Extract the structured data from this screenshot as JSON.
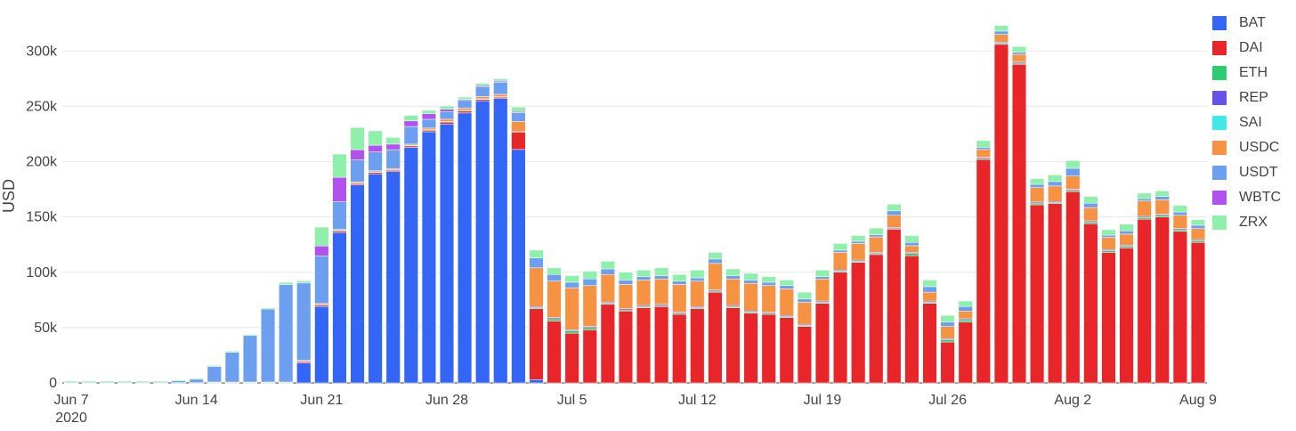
{
  "chart_data": {
    "type": "bar",
    "stacked": true,
    "ylabel": "USD",
    "xlabel": "",
    "ylim": [
      0,
      330000
    ],
    "y_ticks": [
      0,
      50000,
      100000,
      150000,
      200000,
      250000,
      300000
    ],
    "y_tick_labels": [
      "0",
      "50k",
      "100k",
      "150k",
      "200k",
      "250k",
      "300k"
    ],
    "x_tick_labels": [
      {
        "label": "Jun 7",
        "sublabel": "2020",
        "index": 0
      },
      {
        "label": "Jun 14",
        "index": 7
      },
      {
        "label": "Jun 21",
        "index": 14
      },
      {
        "label": "Jun 28",
        "index": 21
      },
      {
        "label": "Jul 5",
        "index": 28
      },
      {
        "label": "Jul 12",
        "index": 35
      },
      {
        "label": "Jul 19",
        "index": 42
      },
      {
        "label": "Jul 26",
        "index": 49
      },
      {
        "label": "Aug 2",
        "index": 56
      },
      {
        "label": "Aug 9",
        "index": 63
      }
    ],
    "categories": [
      "2020-06-07",
      "2020-06-08",
      "2020-06-09",
      "2020-06-10",
      "2020-06-11",
      "2020-06-12",
      "2020-06-13",
      "2020-06-14",
      "2020-06-15",
      "2020-06-16",
      "2020-06-17",
      "2020-06-18",
      "2020-06-19",
      "2020-06-20",
      "2020-06-21",
      "2020-06-22",
      "2020-06-23",
      "2020-06-24",
      "2020-06-25",
      "2020-06-26",
      "2020-06-27",
      "2020-06-28",
      "2020-06-29",
      "2020-06-30",
      "2020-07-01",
      "2020-07-02",
      "2020-07-03",
      "2020-07-04",
      "2020-07-05",
      "2020-07-06",
      "2020-07-07",
      "2020-07-08",
      "2020-07-09",
      "2020-07-10",
      "2020-07-11",
      "2020-07-12",
      "2020-07-13",
      "2020-07-14",
      "2020-07-15",
      "2020-07-16",
      "2020-07-17",
      "2020-07-18",
      "2020-07-19",
      "2020-07-20",
      "2020-07-21",
      "2020-07-22",
      "2020-07-23",
      "2020-07-24",
      "2020-07-25",
      "2020-07-26",
      "2020-07-27",
      "2020-07-28",
      "2020-07-29",
      "2020-07-30",
      "2020-07-31",
      "2020-08-01",
      "2020-08-02",
      "2020-08-03",
      "2020-08-04",
      "2020-08-05",
      "2020-08-06",
      "2020-08-07",
      "2020-08-08",
      "2020-08-09"
    ],
    "legend_position": "top-right",
    "grid": true,
    "series": [
      {
        "name": "BAT",
        "color": "#3366f6",
        "values": [
          0,
          0,
          0,
          0,
          0,
          0,
          0,
          0,
          0,
          0,
          0,
          0,
          0,
          18000,
          69000,
          136000,
          179000,
          189000,
          191000,
          213000,
          227000,
          234000,
          244000,
          255000,
          257000,
          211000,
          3000,
          0,
          0,
          0,
          0,
          0,
          0,
          0,
          0,
          0,
          0,
          0,
          0,
          0,
          0,
          0,
          0,
          0,
          0,
          0,
          0,
          0,
          0,
          0,
          0,
          0,
          0,
          0,
          0,
          0,
          0,
          0,
          0,
          0,
          0,
          0,
          0,
          0
        ]
      },
      {
        "name": "DAI",
        "color": "#e8262a",
        "values": [
          0,
          0,
          0,
          0,
          0,
          0,
          0,
          0,
          0,
          0,
          0,
          0,
          0,
          1500,
          1500,
          1500,
          1500,
          1500,
          1500,
          1500,
          1500,
          2000,
          2000,
          1500,
          1500,
          16000,
          64000,
          56000,
          45000,
          48000,
          71000,
          65000,
          68000,
          69000,
          62000,
          67000,
          82000,
          68000,
          63000,
          62000,
          59000,
          51000,
          72000,
          100000,
          109000,
          116000,
          139000,
          115000,
          72000,
          37000,
          55000,
          202000,
          306000,
          288000,
          161000,
          162000,
          173000,
          144000,
          118000,
          122000,
          148000,
          150000,
          137000,
          127000
        ]
      },
      {
        "name": "ETH",
        "color": "#2ecc71",
        "values": [
          300,
          300,
          300,
          300,
          300,
          300,
          300,
          300,
          300,
          300,
          300,
          300,
          300,
          300,
          300,
          300,
          300,
          300,
          300,
          300,
          300,
          300,
          300,
          300,
          300,
          300,
          1000,
          2000,
          2000,
          2000,
          1000,
          1000,
          1000,
          1000,
          1000,
          1000,
          1000,
          1000,
          1000,
          1000,
          1000,
          1000,
          1000,
          1000,
          1000,
          1000,
          500,
          2000,
          1000,
          2000,
          2000,
          1000,
          1000,
          1000,
          1500,
          1000,
          1000,
          1500,
          1500,
          1500,
          1500,
          1500,
          1500,
          1500
        ]
      },
      {
        "name": "REP",
        "color": "#6653e8",
        "values": [
          0,
          0,
          0,
          0,
          0,
          0,
          0,
          0,
          0,
          0,
          0,
          0,
          0,
          0,
          0,
          0,
          0,
          0,
          0,
          0,
          0,
          0,
          0,
          0,
          0,
          0,
          1000,
          1000,
          1000,
          1000,
          1000,
          1000,
          1000,
          1000,
          1000,
          1000,
          1000,
          1000,
          1000,
          1000,
          1000,
          1000,
          1000,
          1000,
          1000,
          1000,
          1000,
          1000,
          1000,
          1000,
          1000,
          1000,
          1000,
          1000,
          1000,
          1000,
          1000,
          1000,
          1000,
          1000,
          1000,
          1000,
          1000,
          1000
        ]
      },
      {
        "name": "SAI",
        "color": "#3fe9e4",
        "values": [
          0,
          0,
          0,
          0,
          0,
          0,
          0,
          0,
          0,
          0,
          0,
          0,
          0,
          0,
          0,
          0,
          0,
          0,
          0,
          0,
          0,
          0,
          0,
          0,
          0,
          0,
          0,
          0,
          0,
          0,
          0,
          0,
          0,
          0,
          0,
          0,
          0,
          0,
          0,
          0,
          0,
          0,
          0,
          0,
          0,
          0,
          0,
          0,
          0,
          0,
          0,
          0,
          0,
          0,
          0,
          0,
          0,
          0,
          0,
          0,
          0,
          0,
          0,
          0
        ]
      },
      {
        "name": "USDC",
        "color": "#f59342",
        "values": [
          0,
          0,
          0,
          0,
          0,
          0,
          0,
          0,
          500,
          500,
          500,
          500,
          500,
          500,
          1000,
          1000,
          1000,
          1000,
          1000,
          1000,
          1500,
          2000,
          2000,
          2000,
          2000,
          9000,
          35000,
          33000,
          38000,
          37000,
          25000,
          22000,
          23000,
          23000,
          25000,
          23000,
          24000,
          24000,
          25000,
          24000,
          24000,
          20000,
          20000,
          16000,
          15000,
          14000,
          11000,
          6000,
          8000,
          11000,
          7000,
          7000,
          7000,
          7000,
          13000,
          14000,
          12000,
          12000,
          11000,
          10000,
          14000,
          13000,
          12000,
          10000
        ]
      },
      {
        "name": "USDT",
        "color": "#6d9ff0",
        "values": [
          300,
          300,
          300,
          300,
          300,
          300,
          1500,
          3000,
          14000,
          27000,
          42000,
          66000,
          88000,
          70000,
          43000,
          25000,
          20000,
          17000,
          17000,
          16000,
          8000,
          7000,
          7000,
          9000,
          11000,
          8000,
          9000,
          6000,
          5000,
          6000,
          5000,
          4000,
          3000,
          3000,
          3000,
          3000,
          4000,
          3000,
          3000,
          3000,
          3000,
          3000,
          2000,
          2000,
          2000,
          2000,
          4000,
          3000,
          5000,
          4000,
          4000,
          2000,
          3000,
          2000,
          3000,
          4000,
          7000,
          4000,
          2000,
          3000,
          2000,
          3000,
          3000,
          3000
        ]
      },
      {
        "name": "WBTC",
        "color": "#b151f0",
        "values": [
          0,
          0,
          0,
          0,
          0,
          0,
          0,
          0,
          0,
          0,
          0,
          0,
          0,
          0,
          9000,
          22000,
          9000,
          6000,
          5000,
          5000,
          5000,
          2000,
          1000,
          1000,
          1000,
          1000,
          0,
          0,
          0,
          0,
          0,
          0,
          0,
          0,
          0,
          0,
          0,
          0,
          0,
          0,
          0,
          0,
          0,
          0,
          0,
          0,
          0,
          0,
          0,
          0,
          0,
          0,
          0,
          0,
          0,
          0,
          0,
          0,
          0,
          0,
          0,
          0,
          0,
          0
        ]
      },
      {
        "name": "ZRX",
        "color": "#8ef0a9",
        "values": [
          1000,
          1000,
          1000,
          1000,
          1000,
          1000,
          1000,
          1000,
          1000,
          1000,
          1000,
          1000,
          2000,
          2000,
          17000,
          21000,
          20000,
          13000,
          6000,
          5000,
          3000,
          3000,
          2000,
          2000,
          2000,
          4000,
          7000,
          6000,
          6000,
          7000,
          7000,
          7000,
          6000,
          7000,
          6000,
          7000,
          6000,
          6000,
          6000,
          5000,
          5000,
          6000,
          6000,
          6000,
          5000,
          6000,
          6000,
          6000,
          6000,
          6000,
          5000,
          6000,
          5000,
          5000,
          5000,
          6000,
          7000,
          6000,
          5000,
          6000,
          5000,
          5000,
          6000,
          5000
        ]
      }
    ]
  }
}
